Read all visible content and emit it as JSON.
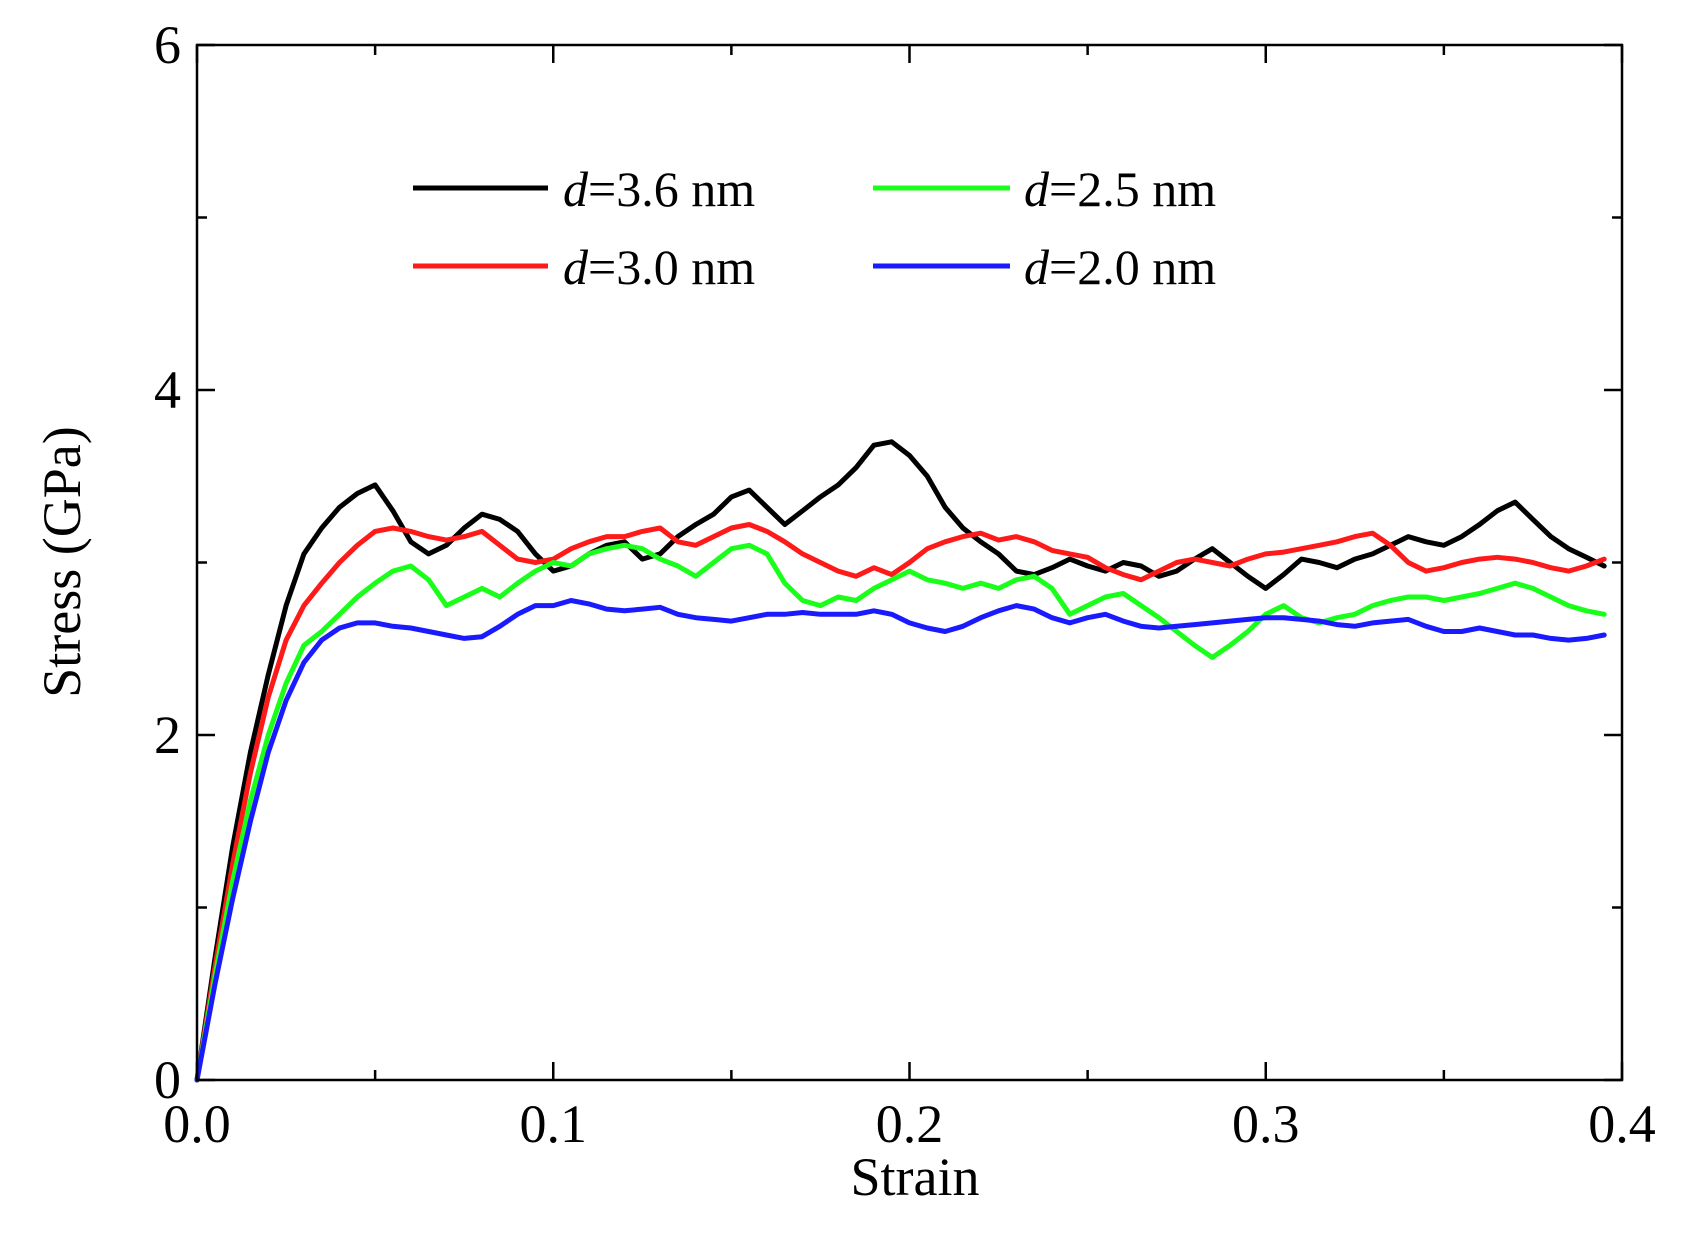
{
  "chart_data": {
    "type": "line",
    "title": "",
    "xlabel": "Strain",
    "ylabel": "Stress (GPa)",
    "xlim": [
      0.0,
      0.4
    ],
    "ylim": [
      0,
      6
    ],
    "grid": false,
    "legend_position": "upper-center, two columns",
    "x_ticks": [
      0.0,
      0.1,
      0.2,
      0.3,
      0.4
    ],
    "x_tick_labels": [
      "0.0",
      "0.1",
      "0.2",
      "0.3",
      "0.4"
    ],
    "y_ticks": [
      0,
      2,
      4,
      6
    ],
    "y_tick_labels": [
      "0",
      "2",
      "4",
      "6"
    ],
    "series": [
      {
        "name": "d=3.6 nm",
        "prefix": "d",
        "suffix": "=3.6 nm",
        "color": "#000000",
        "x": [
          0,
          0.005,
          0.01,
          0.015,
          0.02,
          0.025,
          0.03,
          0.035,
          0.04,
          0.045,
          0.05,
          0.055,
          0.06,
          0.065,
          0.07,
          0.075,
          0.08,
          0.085,
          0.09,
          0.095,
          0.1,
          0.105,
          0.11,
          0.115,
          0.12,
          0.125,
          0.13,
          0.135,
          0.14,
          0.145,
          0.15,
          0.155,
          0.16,
          0.165,
          0.17,
          0.175,
          0.18,
          0.185,
          0.19,
          0.195,
          0.2,
          0.205,
          0.21,
          0.215,
          0.22,
          0.225,
          0.23,
          0.235,
          0.24,
          0.245,
          0.25,
          0.255,
          0.26,
          0.265,
          0.27,
          0.275,
          0.28,
          0.285,
          0.29,
          0.295,
          0.3,
          0.305,
          0.31,
          0.315,
          0.32,
          0.325,
          0.33,
          0.335,
          0.34,
          0.345,
          0.35,
          0.355,
          0.36,
          0.365,
          0.37,
          0.375,
          0.38,
          0.385,
          0.39,
          0.395
        ],
        "y": [
          0,
          0.7,
          1.35,
          1.9,
          2.35,
          2.75,
          3.05,
          3.2,
          3.32,
          3.4,
          3.45,
          3.3,
          3.12,
          3.05,
          3.1,
          3.2,
          3.28,
          3.25,
          3.18,
          3.05,
          2.95,
          2.98,
          3.05,
          3.1,
          3.12,
          3.02,
          3.05,
          3.15,
          3.22,
          3.28,
          3.38,
          3.42,
          3.32,
          3.22,
          3.3,
          3.38,
          3.45,
          3.55,
          3.68,
          3.7,
          3.62,
          3.5,
          3.32,
          3.2,
          3.12,
          3.05,
          2.95,
          2.93,
          2.97,
          3.02,
          2.98,
          2.95,
          3.0,
          2.98,
          2.92,
          2.95,
          3.02,
          3.08,
          3.0,
          2.92,
          2.85,
          2.93,
          3.02,
          3.0,
          2.97,
          3.02,
          3.05,
          3.1,
          3.15,
          3.12,
          3.1,
          3.15,
          3.22,
          3.3,
          3.35,
          3.25,
          3.15,
          3.08,
          3.03,
          2.98
        ]
      },
      {
        "name": "d=3.0 nm",
        "prefix": "d",
        "suffix": "=3.0 nm",
        "color": "#ff1a1a",
        "x": [
          0,
          0.005,
          0.01,
          0.015,
          0.02,
          0.025,
          0.03,
          0.035,
          0.04,
          0.045,
          0.05,
          0.055,
          0.06,
          0.065,
          0.07,
          0.075,
          0.08,
          0.085,
          0.09,
          0.095,
          0.1,
          0.105,
          0.11,
          0.115,
          0.12,
          0.125,
          0.13,
          0.135,
          0.14,
          0.145,
          0.15,
          0.155,
          0.16,
          0.165,
          0.17,
          0.175,
          0.18,
          0.185,
          0.19,
          0.195,
          0.2,
          0.205,
          0.21,
          0.215,
          0.22,
          0.225,
          0.23,
          0.235,
          0.24,
          0.245,
          0.25,
          0.255,
          0.26,
          0.265,
          0.27,
          0.275,
          0.28,
          0.285,
          0.29,
          0.295,
          0.3,
          0.305,
          0.31,
          0.315,
          0.32,
          0.325,
          0.33,
          0.335,
          0.34,
          0.345,
          0.35,
          0.355,
          0.36,
          0.365,
          0.37,
          0.375,
          0.38,
          0.385,
          0.39,
          0.395
        ],
        "y": [
          0,
          0.65,
          1.25,
          1.78,
          2.22,
          2.55,
          2.75,
          2.88,
          3.0,
          3.1,
          3.18,
          3.2,
          3.18,
          3.15,
          3.13,
          3.15,
          3.18,
          3.1,
          3.02,
          3.0,
          3.02,
          3.08,
          3.12,
          3.15,
          3.15,
          3.18,
          3.2,
          3.12,
          3.1,
          3.15,
          3.2,
          3.22,
          3.18,
          3.12,
          3.05,
          3.0,
          2.95,
          2.92,
          2.97,
          2.93,
          3.0,
          3.08,
          3.12,
          3.15,
          3.17,
          3.13,
          3.15,
          3.12,
          3.07,
          3.05,
          3.03,
          2.97,
          2.93,
          2.9,
          2.95,
          3.0,
          3.02,
          3.0,
          2.98,
          3.02,
          3.05,
          3.06,
          3.08,
          3.1,
          3.12,
          3.15,
          3.17,
          3.1,
          3.0,
          2.95,
          2.97,
          3.0,
          3.02,
          3.03,
          3.02,
          3.0,
          2.97,
          2.95,
          2.98,
          3.02
        ]
      },
      {
        "name": "d=2.5 nm",
        "prefix": "d",
        "suffix": "=2.5 nm",
        "color": "#1aff1a",
        "x": [
          0,
          0.005,
          0.01,
          0.015,
          0.02,
          0.025,
          0.03,
          0.035,
          0.04,
          0.045,
          0.05,
          0.055,
          0.06,
          0.065,
          0.07,
          0.075,
          0.08,
          0.085,
          0.09,
          0.095,
          0.1,
          0.105,
          0.11,
          0.115,
          0.12,
          0.125,
          0.13,
          0.135,
          0.14,
          0.145,
          0.15,
          0.155,
          0.16,
          0.165,
          0.17,
          0.175,
          0.18,
          0.185,
          0.19,
          0.195,
          0.2,
          0.205,
          0.21,
          0.215,
          0.22,
          0.225,
          0.23,
          0.235,
          0.24,
          0.245,
          0.25,
          0.255,
          0.26,
          0.265,
          0.27,
          0.275,
          0.28,
          0.285,
          0.29,
          0.295,
          0.3,
          0.305,
          0.31,
          0.315,
          0.32,
          0.325,
          0.33,
          0.335,
          0.34,
          0.345,
          0.35,
          0.355,
          0.36,
          0.365,
          0.37,
          0.375,
          0.38,
          0.385,
          0.39,
          0.395
        ],
        "y": [
          0,
          0.6,
          1.15,
          1.62,
          2.0,
          2.3,
          2.52,
          2.6,
          2.7,
          2.8,
          2.88,
          2.95,
          2.98,
          2.9,
          2.75,
          2.8,
          2.85,
          2.8,
          2.88,
          2.95,
          3.0,
          2.98,
          3.05,
          3.08,
          3.1,
          3.08,
          3.02,
          2.98,
          2.92,
          3.0,
          3.08,
          3.1,
          3.05,
          2.88,
          2.78,
          2.75,
          2.8,
          2.78,
          2.85,
          2.9,
          2.95,
          2.9,
          2.88,
          2.85,
          2.88,
          2.85,
          2.9,
          2.92,
          2.85,
          2.7,
          2.75,
          2.8,
          2.82,
          2.75,
          2.68,
          2.6,
          2.52,
          2.45,
          2.52,
          2.6,
          2.7,
          2.75,
          2.68,
          2.65,
          2.68,
          2.7,
          2.75,
          2.78,
          2.8,
          2.8,
          2.78,
          2.8,
          2.82,
          2.85,
          2.88,
          2.85,
          2.8,
          2.75,
          2.72,
          2.7
        ]
      },
      {
        "name": "d=2.0 nm",
        "prefix": "d",
        "suffix": "=2.0 nm",
        "color": "#1a1aff",
        "x": [
          0,
          0.005,
          0.01,
          0.015,
          0.02,
          0.025,
          0.03,
          0.035,
          0.04,
          0.045,
          0.05,
          0.055,
          0.06,
          0.065,
          0.07,
          0.075,
          0.08,
          0.085,
          0.09,
          0.095,
          0.1,
          0.105,
          0.11,
          0.115,
          0.12,
          0.125,
          0.13,
          0.135,
          0.14,
          0.145,
          0.15,
          0.155,
          0.16,
          0.165,
          0.17,
          0.175,
          0.18,
          0.185,
          0.19,
          0.195,
          0.2,
          0.205,
          0.21,
          0.215,
          0.22,
          0.225,
          0.23,
          0.235,
          0.24,
          0.245,
          0.25,
          0.255,
          0.26,
          0.265,
          0.27,
          0.275,
          0.28,
          0.285,
          0.29,
          0.295,
          0.3,
          0.305,
          0.31,
          0.315,
          0.32,
          0.325,
          0.33,
          0.335,
          0.34,
          0.345,
          0.35,
          0.355,
          0.36,
          0.365,
          0.37,
          0.375,
          0.38,
          0.385,
          0.39,
          0.395
        ],
        "y": [
          0,
          0.55,
          1.05,
          1.5,
          1.9,
          2.2,
          2.42,
          2.55,
          2.62,
          2.65,
          2.65,
          2.63,
          2.62,
          2.6,
          2.58,
          2.56,
          2.57,
          2.63,
          2.7,
          2.75,
          2.75,
          2.78,
          2.76,
          2.73,
          2.72,
          2.73,
          2.74,
          2.7,
          2.68,
          2.67,
          2.66,
          2.68,
          2.7,
          2.7,
          2.71,
          2.7,
          2.7,
          2.7,
          2.72,
          2.7,
          2.65,
          2.62,
          2.6,
          2.63,
          2.68,
          2.72,
          2.75,
          2.73,
          2.68,
          2.65,
          2.68,
          2.7,
          2.66,
          2.63,
          2.62,
          2.63,
          2.64,
          2.65,
          2.66,
          2.67,
          2.68,
          2.68,
          2.67,
          2.66,
          2.64,
          2.63,
          2.65,
          2.66,
          2.67,
          2.63,
          2.6,
          2.6,
          2.62,
          2.6,
          2.58,
          2.58,
          2.56,
          2.55,
          2.56,
          2.58
        ]
      }
    ]
  }
}
